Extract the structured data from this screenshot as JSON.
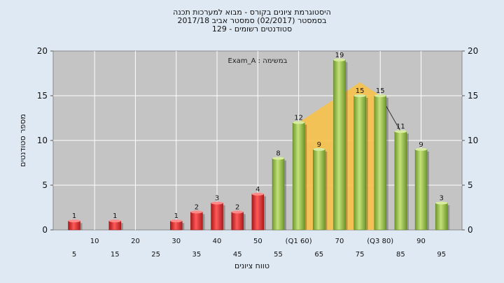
{
  "titles": {
    "line1": "היסטוגרמת ציונים בקורס - מבוא למערכות תכנה",
    "line2": "בסמסטר  (02/2017)  סמסטר אביב 2017/18",
    "line3": "סטודנטים רשומים - 129"
  },
  "colors": {
    "background": "#dfe9f4",
    "plot_area": "#c4c4c4",
    "fail_bar": "#e23a3a",
    "pass_bar": "#9cc15a",
    "iqr_area": "#f7c24a"
  },
  "chart_data": {
    "type": "bar",
    "annotation": "Exam_A : במשימה",
    "xlabel": "טווח ציונים",
    "ylabel": "מספר סטודנטים",
    "ylim": [
      0,
      20
    ],
    "yticks": [
      0,
      5,
      10,
      15,
      20
    ],
    "grid": true,
    "x_tick_labels_row1": [
      "10",
      "20",
      "30",
      "40",
      "50",
      "(Q1 60)",
      "70",
      "(Q3 80)",
      "90"
    ],
    "x_tick_labels_row2": [
      "5",
      "15",
      "25",
      "35",
      "45",
      "55",
      "65",
      "75",
      "85",
      "95"
    ],
    "x": [
      5,
      15,
      30,
      35,
      40,
      45,
      50,
      55,
      60,
      65,
      70,
      75,
      80,
      85,
      90,
      95
    ],
    "values": [
      1,
      1,
      1,
      2,
      3,
      2,
      4,
      8,
      12,
      9,
      19,
      15,
      15,
      11,
      9,
      3
    ],
    "pass_threshold": 55,
    "quartiles": {
      "q1": 60,
      "median": 75,
      "q3": 80
    }
  }
}
